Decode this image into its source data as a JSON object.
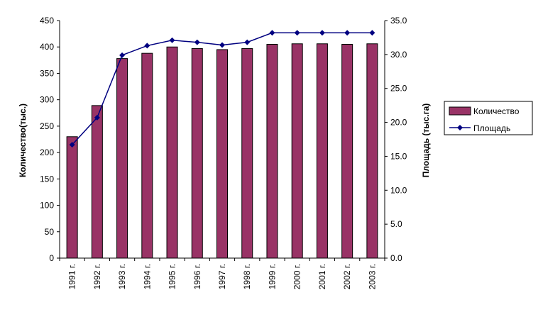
{
  "chart_data": {
    "type": "bar",
    "title": "",
    "categories": [
      "1991 г.",
      "1992 г.",
      "1993 г.",
      "1994 г.",
      "1995 г.",
      "1996 г.",
      "1997 г.",
      "1998 г.",
      "1999 г.",
      "2000 г.",
      "2001 г.",
      "2002 г.",
      "2003 г."
    ],
    "series": [
      {
        "name": "Количество",
        "type": "bar",
        "axis": "left",
        "color": "#993366",
        "values": [
          230,
          289,
          378,
          388,
          400,
          397,
          395,
          397,
          405,
          406,
          406,
          405,
          406
        ]
      },
      {
        "name": "Площадь",
        "type": "line",
        "axis": "right",
        "color": "#000080",
        "values": [
          16.7,
          20.7,
          29.9,
          31.3,
          32.1,
          31.8,
          31.4,
          31.8,
          33.2,
          33.2,
          33.2,
          33.2,
          33.2
        ]
      }
    ],
    "left_axis": {
      "label": "Количество(тыс.)",
      "min": 0,
      "max": 450,
      "step": 50,
      "ticks": [
        "0",
        "50",
        "100",
        "150",
        "200",
        "250",
        "300",
        "350",
        "400",
        "450"
      ]
    },
    "right_axis": {
      "label": "Площадь (тыс.га)",
      "min": 0,
      "max": 35,
      "step": 5,
      "ticks": [
        "0.0",
        "5.0",
        "10.0",
        "15.0",
        "20.0",
        "25.0",
        "30.0",
        "35.0"
      ]
    },
    "grid": false,
    "legend": {
      "position": "right",
      "items": [
        "Количество",
        "Площадь"
      ]
    }
  }
}
